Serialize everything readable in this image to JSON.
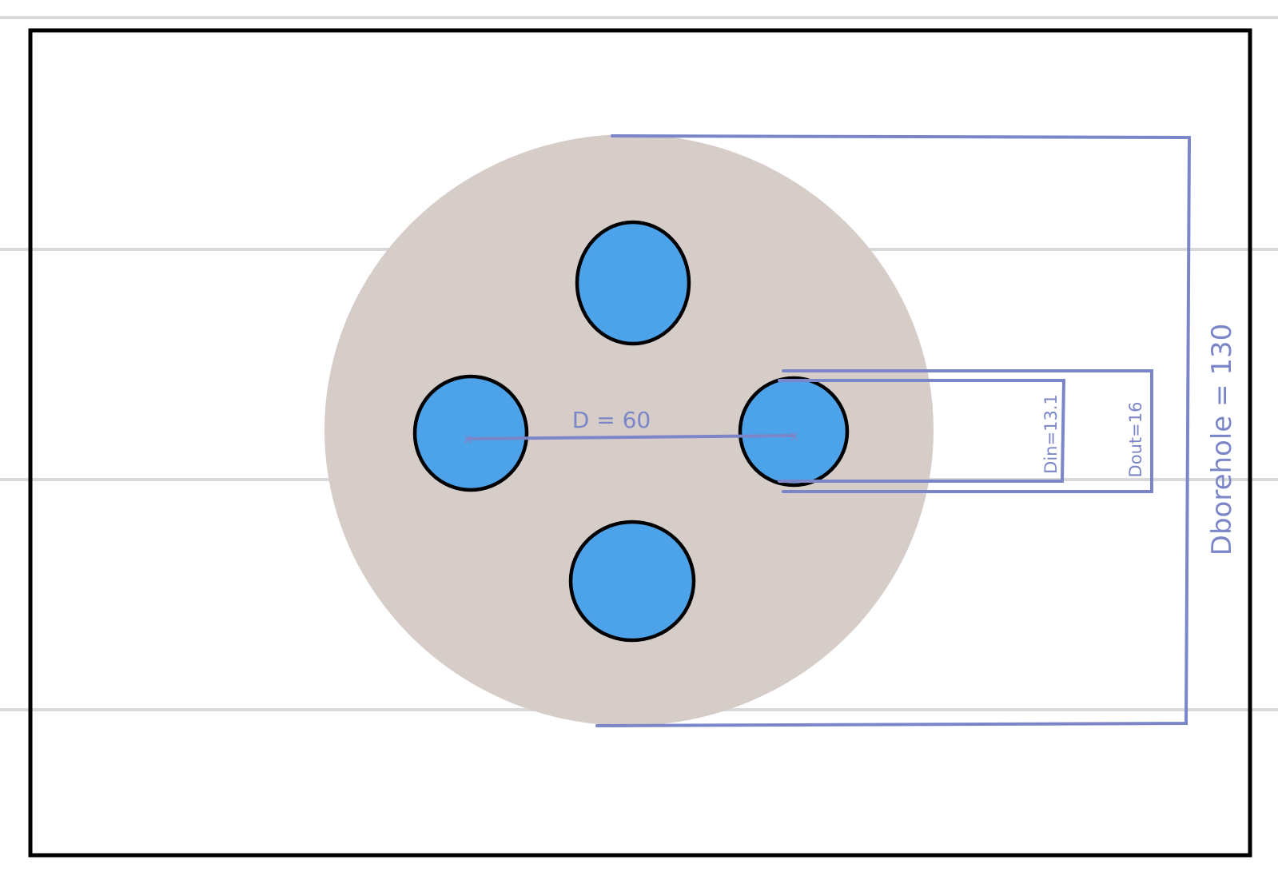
{
  "colors": {
    "ruled_line": "#d9d9d9",
    "frame": "#000000",
    "borehole_fill": "#d6ccc8",
    "pipe_fill": "#4da3ea",
    "pipe_stroke": "#000000",
    "dimension": "#7b86c8"
  },
  "labels": {
    "pipe_spacing": "D = 60",
    "pipe_inner_diameter": "Din=13.1",
    "pipe_outer_diameter": "Dout=16",
    "borehole_diameter": "Dborehole = 130",
    "center_mark": "x"
  }
}
